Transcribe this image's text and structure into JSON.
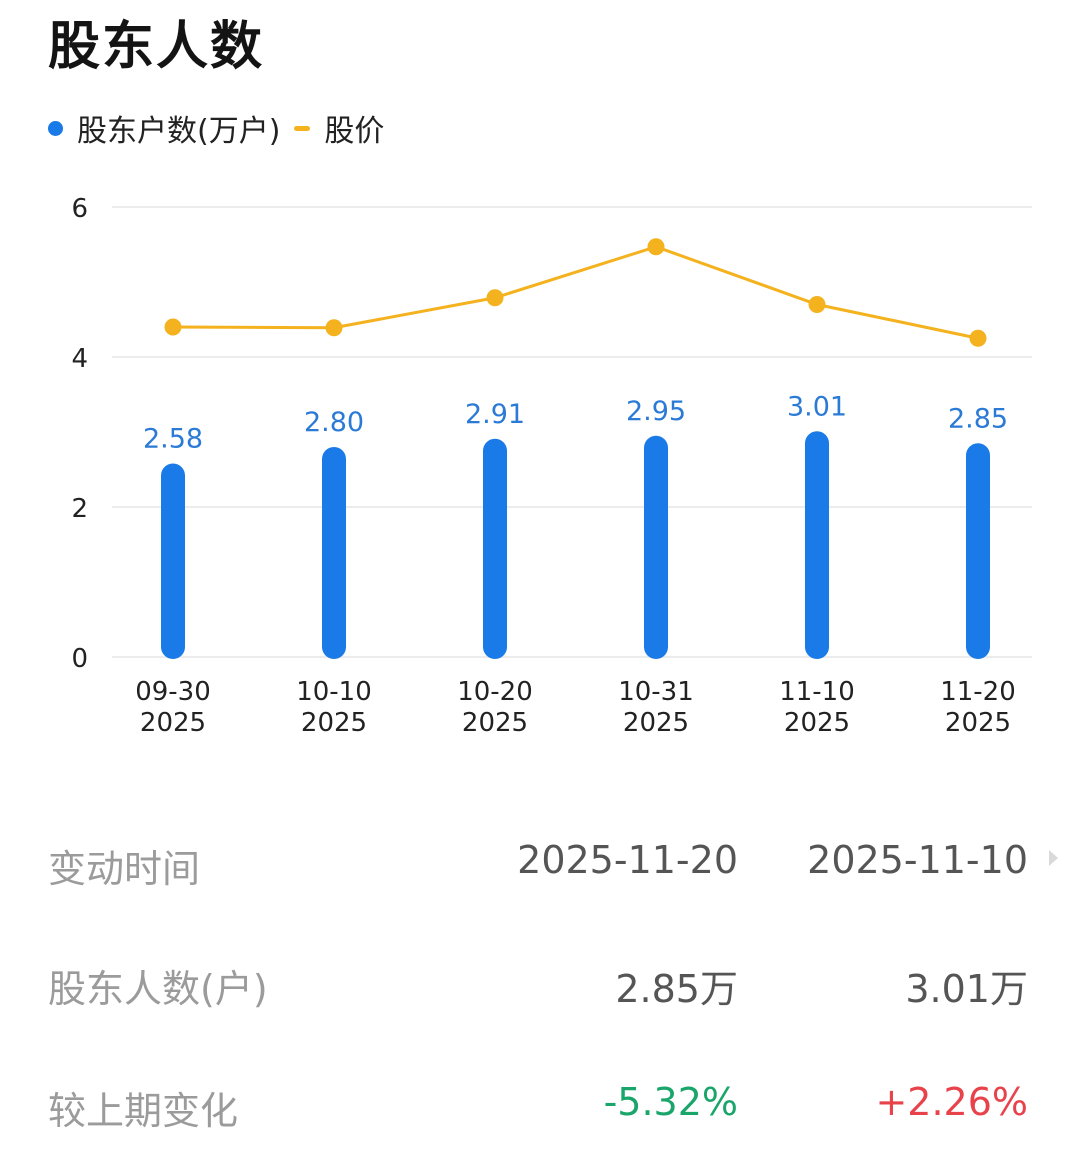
{
  "title": "股东人数",
  "legend": {
    "holders": "股东户数(万户)",
    "price": "股价"
  },
  "colors": {
    "bar": "#1a7be8",
    "line": "#f3b21e",
    "down": "#1aa56b",
    "up": "#e8424b"
  },
  "chart_data": {
    "type": "bar+line",
    "title": "股东人数",
    "categories": [
      "09-30",
      "10-10",
      "10-20",
      "10-31",
      "11-10",
      "11-20"
    ],
    "category_years": [
      "2025",
      "2025",
      "2025",
      "2025",
      "2025",
      "2025"
    ],
    "series": [
      {
        "name": "股东户数(万户)",
        "type": "bar",
        "values": [
          2.58,
          2.8,
          2.91,
          2.95,
          3.01,
          2.85
        ],
        "labels": [
          "2.58",
          "2.80",
          "2.91",
          "2.95",
          "3.01",
          "2.85"
        ]
      },
      {
        "name": "股价",
        "type": "line",
        "values": [
          4.4,
          4.39,
          4.79,
          5.47,
          4.7,
          4.25
        ]
      }
    ],
    "y_ticks": [
      "0",
      "2",
      "4",
      "6"
    ],
    "ylim": [
      0,
      6
    ],
    "grid": true,
    "legend_position": "top-left"
  },
  "table": {
    "rows": [
      {
        "label": "变动时间",
        "v1": "2025-11-20",
        "v2": "2025-11-10"
      },
      {
        "label": "股东人数(户)",
        "v1": "2.85万",
        "v2": "3.01万"
      },
      {
        "label": "较上期变化",
        "v1": "-5.32%",
        "v2": "+2.26%"
      }
    ]
  }
}
